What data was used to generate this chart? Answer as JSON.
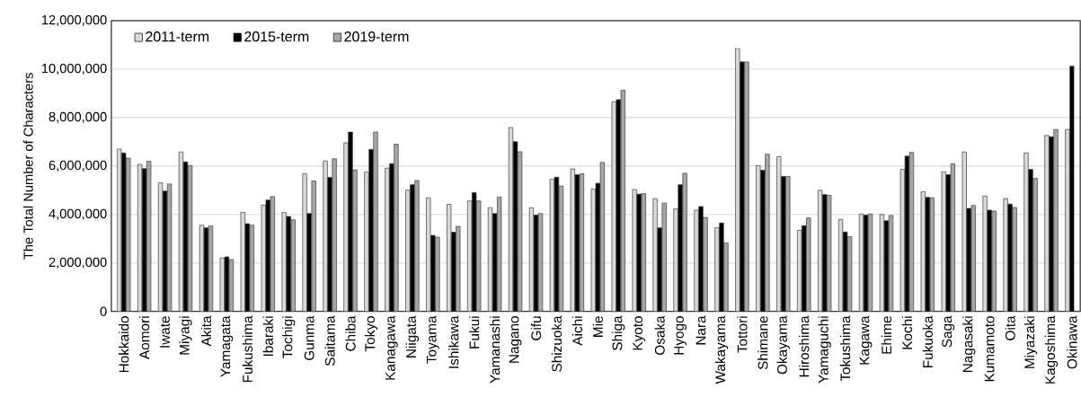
{
  "chart_data": {
    "type": "bar",
    "ylabel": "The Total Number of Characters",
    "categories": [
      "Hokkaido",
      "Aomori",
      "Iwate",
      "Miyagi",
      "Akita",
      "Yamagata",
      "Fukushima",
      "Ibaraki",
      "Tochigi",
      "Gunma",
      "Saitama",
      "Chiba",
      "Tokyo",
      "Kanagawa",
      "Niigata",
      "Toyama",
      "Ishikawa",
      "Fukui",
      "Yamanashi",
      "Nagano",
      "Gifu",
      "Shizuoka",
      "Aichi",
      "Mie",
      "Shiga",
      "Kyoto",
      "Osaka",
      "Hyogo",
      "Nara",
      "Wakayama",
      "Tottori",
      "Shimane",
      "Okayama",
      "Hiroshima",
      "Yamaguchi",
      "Tokushima",
      "Kagawa",
      "Ehime",
      "Kochi",
      "Fukuoka",
      "Saga",
      "Nagasaki",
      "Kumamoto",
      "Oita",
      "Miyazaki",
      "Kagoshima",
      "Okinawa"
    ],
    "series": [
      {
        "name": "2011-term",
        "color": "#d9d9d9",
        "values": [
          6700000,
          6070000,
          5310000,
          6580000,
          3560000,
          2210000,
          4090000,
          4390000,
          4080000,
          5680000,
          6210000,
          6960000,
          5750000,
          5910000,
          5010000,
          4690000,
          4420000,
          4560000,
          4280000,
          7590000,
          4280000,
          5450000,
          5880000,
          5050000,
          8650000,
          5030000,
          4650000,
          4230000,
          4180000,
          3460000,
          10850000,
          6020000,
          6390000,
          3350000,
          5000000,
          3800000,
          4020000,
          4000000,
          5860000,
          4940000,
          5760000,
          6580000,
          4760000,
          4660000,
          6540000,
          7260000,
          7510000
        ]
      },
      {
        "name": "2015-term",
        "color": "#000000",
        "values": [
          6540000,
          5890000,
          4970000,
          6170000,
          3450000,
          2250000,
          3620000,
          4600000,
          3920000,
          4040000,
          5530000,
          7400000,
          6690000,
          6100000,
          5230000,
          3140000,
          3270000,
          4900000,
          4040000,
          7000000,
          3970000,
          5540000,
          5640000,
          5290000,
          8740000,
          4840000,
          3450000,
          5230000,
          4330000,
          3650000,
          10300000,
          5830000,
          5570000,
          3540000,
          4820000,
          3280000,
          3970000,
          3740000,
          6410000,
          4710000,
          5640000,
          4250000,
          4180000,
          4430000,
          5860000,
          7210000,
          10120000
        ]
      },
      {
        "name": "2019-term",
        "color": "#a6a6a6",
        "values": [
          6330000,
          6200000,
          5260000,
          6020000,
          3530000,
          2140000,
          3560000,
          4740000,
          3780000,
          5390000,
          6300000,
          5840000,
          7400000,
          6900000,
          5400000,
          3070000,
          3510000,
          4560000,
          4720000,
          6590000,
          4040000,
          5170000,
          5680000,
          6150000,
          9130000,
          4860000,
          4470000,
          5700000,
          3880000,
          2830000,
          10300000,
          6490000,
          5570000,
          3860000,
          4790000,
          3090000,
          4020000,
          3960000,
          6560000,
          4690000,
          6090000,
          4370000,
          4140000,
          4290000,
          5490000,
          7510000,
          null
        ]
      }
    ],
    "ylim": [
      0,
      12000000
    ],
    "yticks": [
      {
        "value": 0,
        "label": "0"
      },
      {
        "value": 2000000,
        "label": "2,000,000"
      },
      {
        "value": 4000000,
        "label": "4,000,000"
      },
      {
        "value": 6000000,
        "label": "6,000,000"
      },
      {
        "value": 8000000,
        "label": "8,000,000"
      },
      {
        "value": 10000000,
        "label": "10,000,000"
      },
      {
        "value": 12000000,
        "label": "12,000,000"
      }
    ],
    "grid": "y",
    "legend": "top left"
  }
}
